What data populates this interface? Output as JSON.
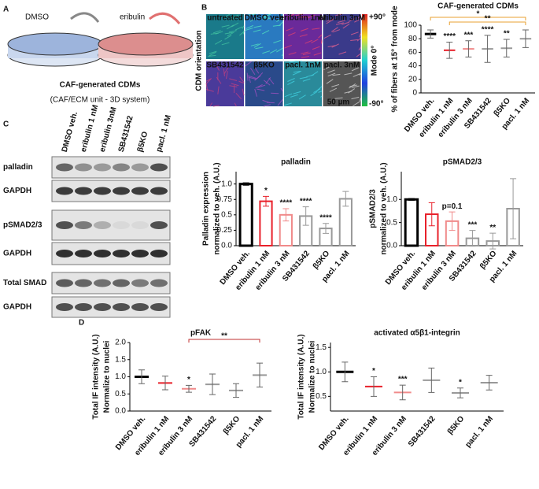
{
  "panel_letters": [
    "A",
    "B",
    "C",
    "D"
  ],
  "panel_a": {
    "left_label": "DMSO",
    "right_label": "eribulin",
    "title": "CAF-generated CDMs",
    "subtitle": "(CAF/ECM unit - 3D system)"
  },
  "panel_b": {
    "side_label": "CDM orientation",
    "tiles": [
      "untreated",
      "DMSO veh",
      "eribulin 1nM",
      "eribulin 3nM",
      "SB431542",
      "β5KO",
      "pacl. 1nM",
      "pacl. 3nM"
    ],
    "scale_bar": "50 µm",
    "colorbar_labels": [
      "+90°",
      "Mode 0°",
      "-90°"
    ]
  },
  "panel_c_blots": {
    "lanes": [
      "DMSO veh.",
      "eribulin 1 nM",
      "eribulin 3nM",
      "SB431542",
      "β5KO",
      "pacl. 1 nM"
    ],
    "rows": [
      "palladin",
      "GAPDH",
      "pSMAD2/3",
      "GAPDH",
      "Total SMAD",
      "GAPDH"
    ]
  },
  "chart_data": [
    {
      "type": "dot",
      "title": "CAF-generated CDMs",
      "y_label": [
        "% of fibers at 15° from mode"
      ],
      "categories": [
        "DMSO veh.",
        "eribulin 1 nM",
        "eribulin 3 nM",
        "SB431542",
        "β5KO",
        "pacl. 1 nM"
      ],
      "colors": [
        "#555555",
        "#e8202a",
        "#f08a8a",
        "#999999",
        "#999999",
        "#999999"
      ],
      "values": [
        87,
        63,
        65,
        65,
        66,
        80
      ],
      "errors": [
        6,
        12,
        12,
        20,
        13,
        13
      ],
      "annotations": [
        null,
        "****",
        "***",
        "****",
        "**",
        null
      ],
      "brackets": [
        {
          "from": "DMSO veh.",
          "to": "pacl. 1 nM",
          "label": "*",
          "color": "#e8a030"
        },
        {
          "from": "eribulin 1 nM",
          "to": "pacl. 1 nM",
          "label": "**",
          "color": "#e8a030"
        }
      ],
      "ylim": [
        0,
        100
      ],
      "yticks": [
        0,
        20,
        40,
        60,
        80,
        100
      ]
    },
    {
      "type": "bar",
      "title": "palladin",
      "y_label": [
        "Palladin expression",
        "normalized to veh. (A.U.)"
      ],
      "categories": [
        "DMSO veh.",
        "eribulin 1 nM",
        "eribulin 3 nM",
        "SB431542",
        "β5KO",
        "pacl. 1 nM"
      ],
      "colors": [
        "#000000",
        "#e8202a",
        "#f08a8a",
        "#999999",
        "#999999",
        "#999999"
      ],
      "values": [
        1.0,
        0.72,
        0.5,
        0.48,
        0.28,
        0.76
      ],
      "errors": [
        0.02,
        0.08,
        0.1,
        0.15,
        0.08,
        0.12
      ],
      "annotations": [
        null,
        "*",
        "****",
        "****",
        "****",
        null
      ],
      "ylim": [
        0,
        1.2
      ],
      "yticks": [
        {
          "value": 0,
          "label": "0.0"
        },
        0.25,
        0.5,
        0.75,
        {
          "value": 1,
          "label": "1.0"
        }
      ]
    },
    {
      "type": "bar",
      "title": "pSMAD2/3",
      "y_label": [
        "pSMAD2/3",
        "normalized to veh. (A.U.)"
      ],
      "categories": [
        "DMSO veh.",
        "eribulin 1 nM",
        "eribulin 3 nM",
        "SB431542",
        "β5KO",
        "pacl. 1 nM"
      ],
      "colors": [
        "#000000",
        "#e8202a",
        "#f08a8a",
        "#999999",
        "#999999",
        "#999999"
      ],
      "values": [
        1.0,
        0.68,
        0.53,
        0.16,
        0.1,
        0.8
      ],
      "errors": [
        0.02,
        0.25,
        0.2,
        0.17,
        0.17,
        0.65
      ],
      "annotations": [
        null,
        null,
        "p=0.1",
        "***",
        "**",
        null
      ],
      "ylim": [
        0,
        1.6
      ],
      "yticks": [
        {
          "value": 0,
          "label": "0.0"
        },
        0.5,
        {
          "value": 1,
          "label": "1.0"
        }
      ]
    },
    {
      "type": "dot",
      "title": "pFAK",
      "y_label": [
        "Total IF intensity (A.U.)",
        "Normalize to nuclei"
      ],
      "categories": [
        "DMSO veh.",
        "eribulin 1 nM",
        "eribulin 3 nM",
        "SB431542",
        "β5KO",
        "pacl. 1 nM"
      ],
      "colors": [
        "#000000",
        "#e8202a",
        "#f08a8a",
        "#999999",
        "#999999",
        "#999999"
      ],
      "values": [
        1.0,
        0.82,
        0.65,
        0.78,
        0.6,
        1.05
      ],
      "errors": [
        0.2,
        0.2,
        0.1,
        0.3,
        0.2,
        0.35
      ],
      "annotations": [
        null,
        null,
        "*",
        null,
        null,
        null
      ],
      "brackets": [
        {
          "from": "eribulin 3 nM",
          "to": "pacl. 1 nM",
          "label": "**",
          "color": "#c03030"
        }
      ],
      "ylim": [
        0,
        2
      ],
      "yticks": [
        {
          "value": 0,
          "label": "0.0"
        },
        0.5,
        {
          "value": 1,
          "label": "1.0"
        },
        1.5,
        {
          "value": 2,
          "label": "2.0"
        }
      ]
    },
    {
      "type": "dot",
      "title": "activated α5β1-integrin",
      "y_label": [
        "Total IF intensity (A.U.)",
        "Normalize to nuclei"
      ],
      "categories": [
        "DMSO veh.",
        "eribulin 1 nM",
        "eribulin 3 nM",
        "SB431542",
        "β5KO",
        "pacl. 1 nM"
      ],
      "colors": [
        "#000000",
        "#e8202a",
        "#f08a8a",
        "#999999",
        "#999999",
        "#999999"
      ],
      "values": [
        1.0,
        0.7,
        0.58,
        0.83,
        0.57,
        0.78
      ],
      "errors": [
        0.2,
        0.2,
        0.15,
        0.25,
        0.1,
        0.15
      ],
      "annotations": [
        null,
        "*",
        "***",
        null,
        "*",
        null
      ],
      "ylim": [
        0.2,
        1.6
      ],
      "yticks": [
        0.5,
        {
          "value": 1,
          "label": "1.0"
        },
        1.5
      ]
    }
  ]
}
